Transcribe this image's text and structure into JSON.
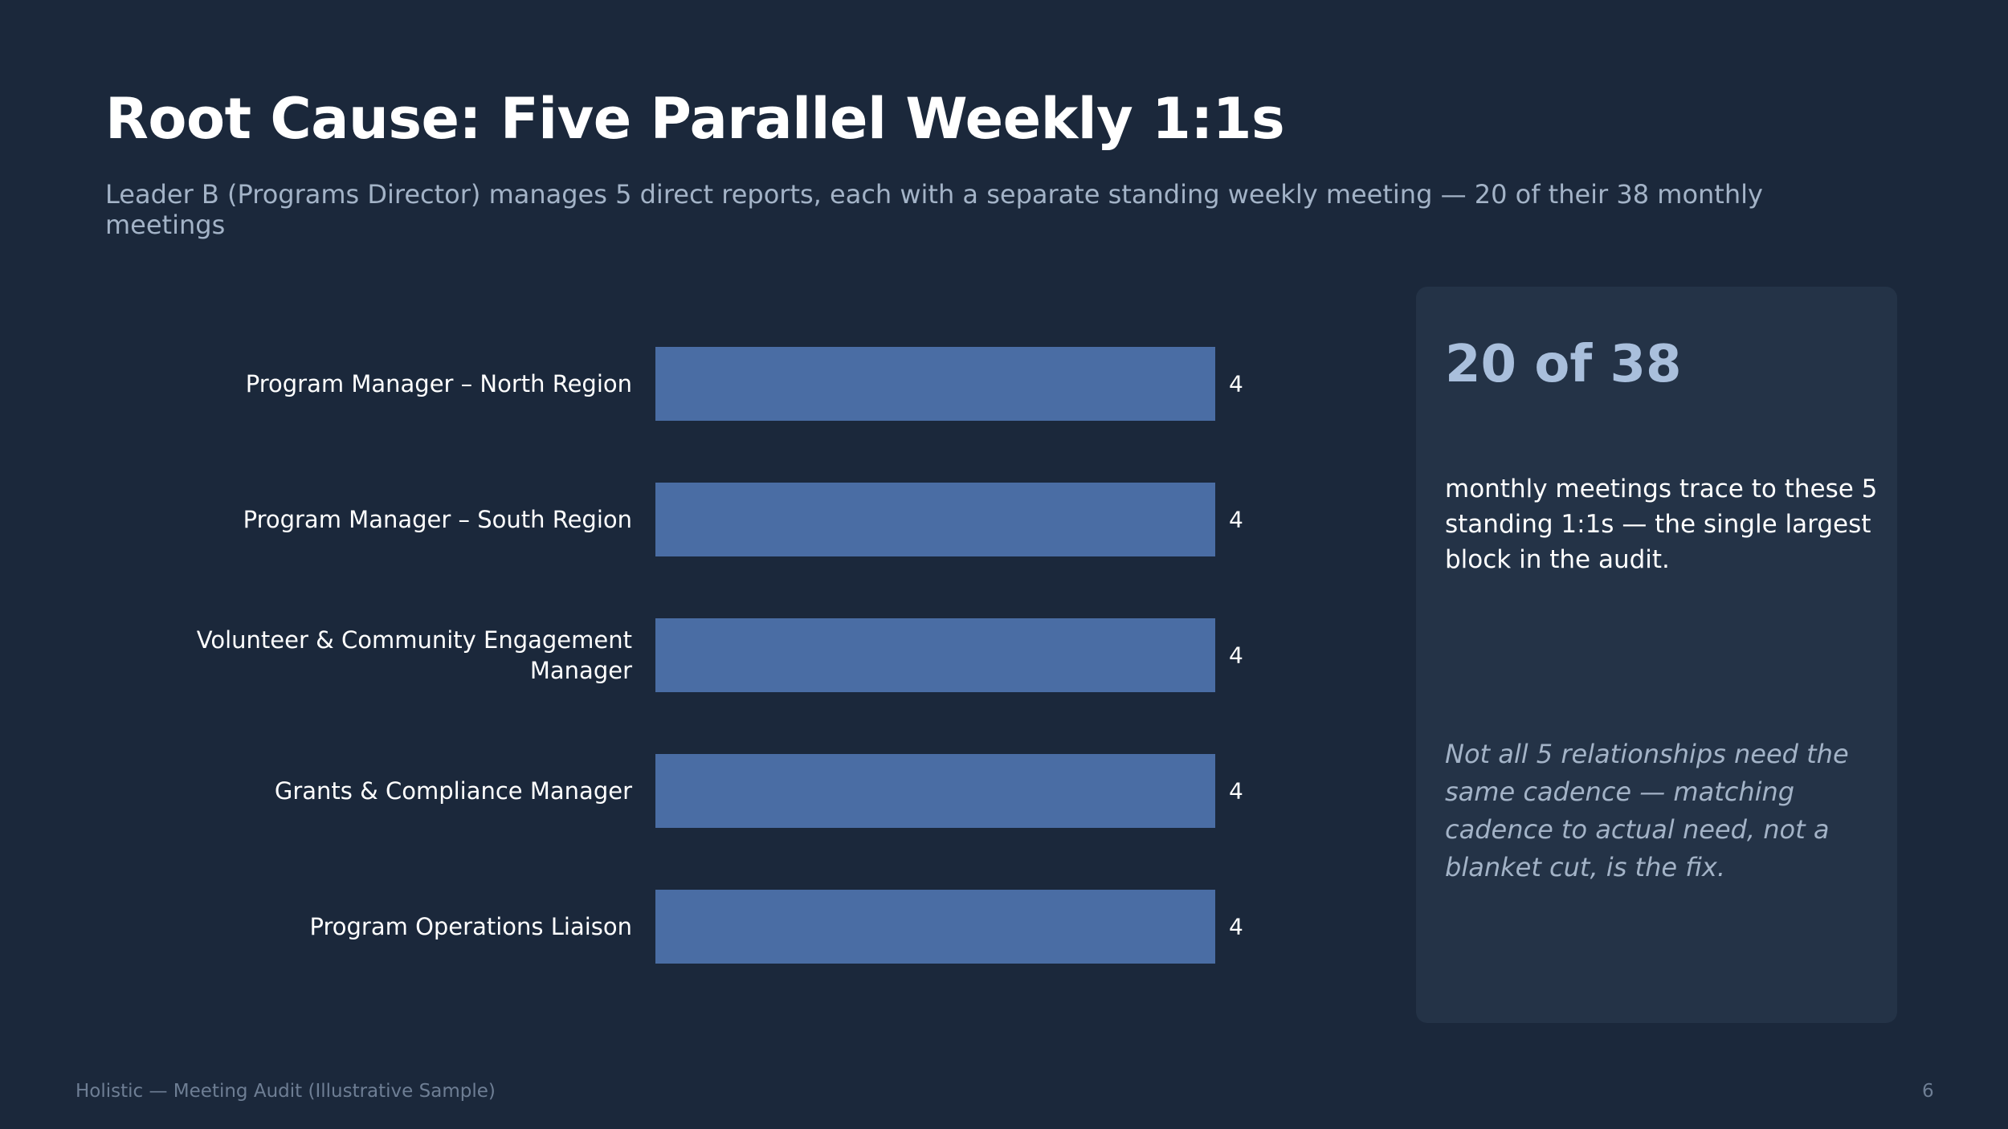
{
  "slide": {
    "title": "Root Cause: Five Parallel Weekly 1:1s",
    "subtitle": "Leader B (Programs Director) manages 5 direct reports, each with a separate standing weekly meeting — 20 of their 38 monthly meetings"
  },
  "chart_data": {
    "type": "bar",
    "orientation": "horizontal",
    "categories": [
      [
        "Program Manager – North Region"
      ],
      [
        "Program Manager – South Region"
      ],
      [
        "Volunteer & Community Engagement",
        "Manager"
      ],
      [
        "Grants & Compliance Manager"
      ],
      [
        "Program Operations Liaison"
      ]
    ],
    "values": [
      4,
      4,
      4,
      4,
      4
    ],
    "data_labels": [
      "4",
      "4",
      "4",
      "4",
      "4"
    ],
    "xlim": [
      0,
      4
    ],
    "grid": false,
    "legend": "none",
    "bar_color": "#4a6da4"
  },
  "callout": {
    "stat": "20 of 38",
    "description": "monthly meetings trace to these 5 standing 1:1s — the single largest block in the audit.",
    "note": "Not all 5 relationships need the same cadence — matching cadence to actual need, not a blanket cut, is the fix."
  },
  "footer": {
    "source": "Holistic — Meeting Audit (Illustrative Sample)",
    "page_number": "6"
  },
  "colors": {
    "background": "#1b283b",
    "panel": "#243347",
    "bar": "#4a6da4",
    "stat": "#a9bfdc",
    "muted_text": "#a3b3c7"
  }
}
